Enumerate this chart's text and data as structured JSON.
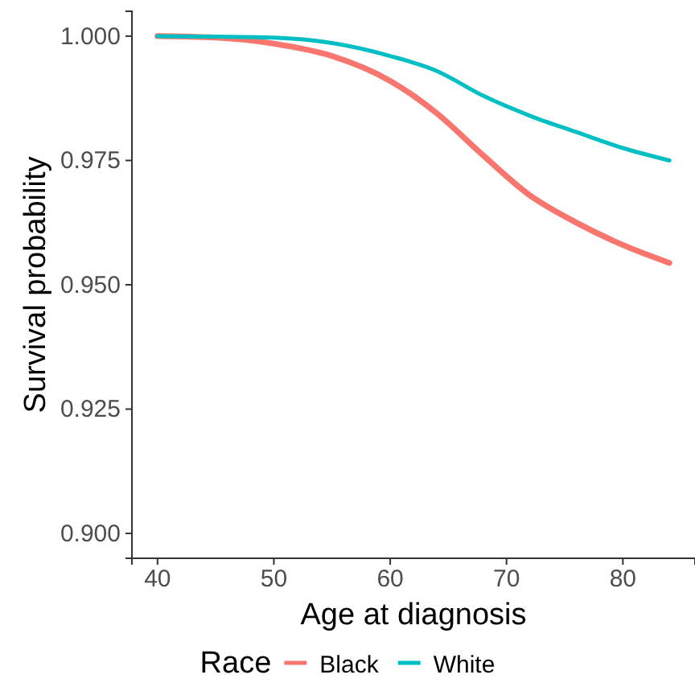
{
  "chart_data": {
    "type": "line",
    "xlabel": "Age at diagnosis",
    "ylabel": "Survival probability",
    "legend_title": "Race",
    "legend": "bottom",
    "grid": false,
    "x": [
      40,
      45,
      50,
      55,
      60,
      64,
      68,
      72,
      76,
      80,
      84
    ],
    "series": [
      {
        "name": "Black",
        "color": "#f8766d",
        "values": [
          1.0,
          0.9997,
          0.9985,
          0.996,
          0.991,
          0.9845,
          0.976,
          0.968,
          0.9625,
          0.958,
          0.9544
        ]
      },
      {
        "name": "White",
        "color": "#00bfc4",
        "values": [
          1.0,
          0.9999,
          0.9997,
          0.9986,
          0.996,
          0.993,
          0.988,
          0.984,
          0.9807,
          0.9775,
          0.975
        ]
      }
    ],
    "xlim": [
      37.8,
      86.2
    ],
    "xticks": [
      40,
      50,
      60,
      70,
      80
    ],
    "ylim": [
      0.895,
      1.005
    ],
    "yticks": [
      {
        "value": 0.9,
        "label": "0.900"
      },
      {
        "value": 0.925,
        "label": "0.925"
      },
      {
        "value": 0.95,
        "label": "0.950"
      },
      {
        "value": 0.975,
        "label": "0.975"
      },
      {
        "value": 1.0,
        "label": "1.000"
      }
    ]
  }
}
